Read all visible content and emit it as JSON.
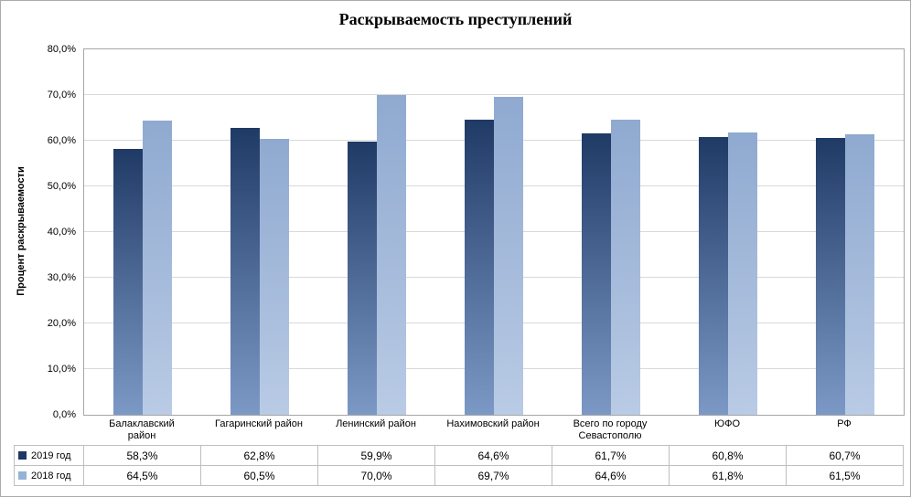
{
  "title": "Раскрываемость преступлений",
  "y_axis_title": "Процент раскрываемости",
  "chart_data": {
    "type": "bar",
    "title": "Раскрываемость преступлений",
    "xlabel": "",
    "ylabel": "Процент раскрываемости",
    "ylim": [
      0,
      80
    ],
    "grid": true,
    "legend_position": "data-table-left",
    "yticks": [
      "0,0%",
      "10,0%",
      "20,0%",
      "30,0%",
      "40,0%",
      "50,0%",
      "60,0%",
      "70,0%",
      "80,0%"
    ],
    "categories": [
      "Балаклавский район",
      "Гагаринский район",
      "Ленинский район",
      "Нахимовский район",
      "Всего по городу Севастополю",
      "ЮФО",
      "РФ"
    ],
    "categories_display": [
      "Балаклавский\nрайон",
      "Гагаринский район",
      "Ленинский район",
      "Нахимовский район",
      "Всего по городу\nСевастополю",
      "ЮФО",
      "РФ"
    ],
    "series": [
      {
        "name": "2019 год",
        "values": [
          58.3,
          62.8,
          59.9,
          64.6,
          61.7,
          60.8,
          60.7
        ],
        "labels": [
          "58,3%",
          "62,8%",
          "59,9%",
          "64,6%",
          "61,7%",
          "60,8%",
          "60,7%"
        ],
        "color": "#1F3864",
        "gradient_top": "#203A66",
        "gradient_bottom": "#7C99C6"
      },
      {
        "name": "2018 год",
        "values": [
          64.5,
          60.5,
          70.0,
          69.7,
          64.6,
          61.8,
          61.5
        ],
        "labels": [
          "64,5%",
          "60,5%",
          "70,0%",
          "69,7%",
          "64,6%",
          "61,8%",
          "61,5%"
        ],
        "color": "#95B3D7",
        "gradient_top": "#8FA9D0",
        "gradient_bottom": "#B9CBE5"
      }
    ]
  }
}
